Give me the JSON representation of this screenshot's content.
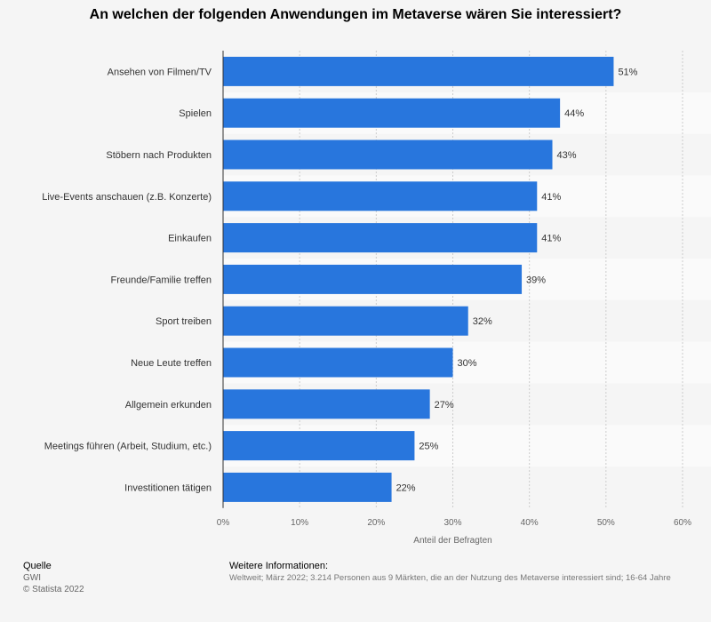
{
  "chart_data": {
    "type": "bar",
    "orientation": "horizontal",
    "title": "An welchen der folgenden Anwendungen im Metaverse wären Sie interessiert?",
    "categories": [
      "Ansehen von Filmen/TV",
      "Spielen",
      "Stöbern nach Produkten",
      "Live-Events anschauen (z.B. Konzerte)",
      "Einkaufen",
      "Freunde/Familie treffen",
      "Sport treiben",
      "Neue Leute treffen",
      "Allgemein erkunden",
      "Meetings führen (Arbeit, Studium, etc.)",
      "Investitionen tätigen"
    ],
    "values": [
      51,
      44,
      43,
      41,
      41,
      39,
      32,
      30,
      27,
      25,
      22
    ],
    "value_labels": [
      "51%",
      "44%",
      "43%",
      "41%",
      "41%",
      "39%",
      "32%",
      "30%",
      "27%",
      "25%",
      "22%"
    ],
    "xlabel": "Anteil der Befragten",
    "xlim": [
      0,
      60
    ],
    "xticks": [
      "0%",
      "10%",
      "20%",
      "30%",
      "40%",
      "50%",
      "60%"
    ],
    "grid": true,
    "bar_color": "#2876dd"
  },
  "source": {
    "heading": "Quelle",
    "lines": [
      "GWI",
      "© Statista 2022"
    ]
  },
  "info": {
    "heading": "Weitere Informationen:",
    "text": "Weltweit; März 2022; 3.214 Personen aus 9 Märkten, die an der Nutzung des Metaverse interessiert sind; 16-64 Jahre"
  }
}
